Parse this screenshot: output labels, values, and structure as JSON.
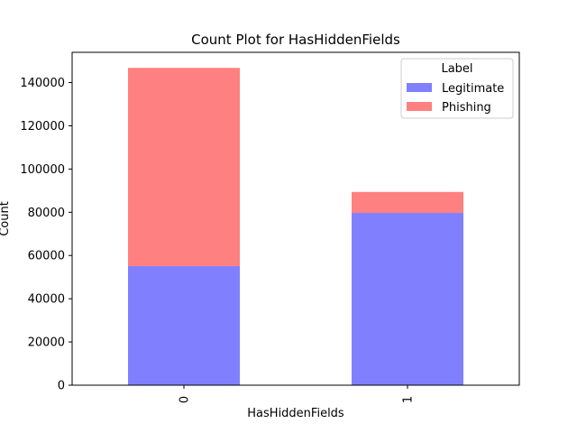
{
  "chart_data": {
    "type": "bar",
    "stacked": true,
    "title": "Count Plot for HasHiddenFields",
    "xlabel": "HasHiddenFields",
    "ylabel": "Count",
    "categories": [
      "0",
      "1"
    ],
    "ylim": [
      0,
      154000
    ],
    "yticks": [
      0,
      20000,
      40000,
      60000,
      80000,
      100000,
      120000,
      140000
    ],
    "ytick_labels": [
      "0",
      "20000",
      "40000",
      "60000",
      "80000",
      "100000",
      "120000",
      "140000"
    ],
    "grid": false,
    "legend_placement": "top-right",
    "legend_title": "Label",
    "series": [
      {
        "name": "Legitimate",
        "color": "#8080ff",
        "values": [
          55100,
          79700
        ]
      },
      {
        "name": "Phishing",
        "color": "#ff8080",
        "values": [
          91700,
          9700
        ]
      }
    ]
  }
}
